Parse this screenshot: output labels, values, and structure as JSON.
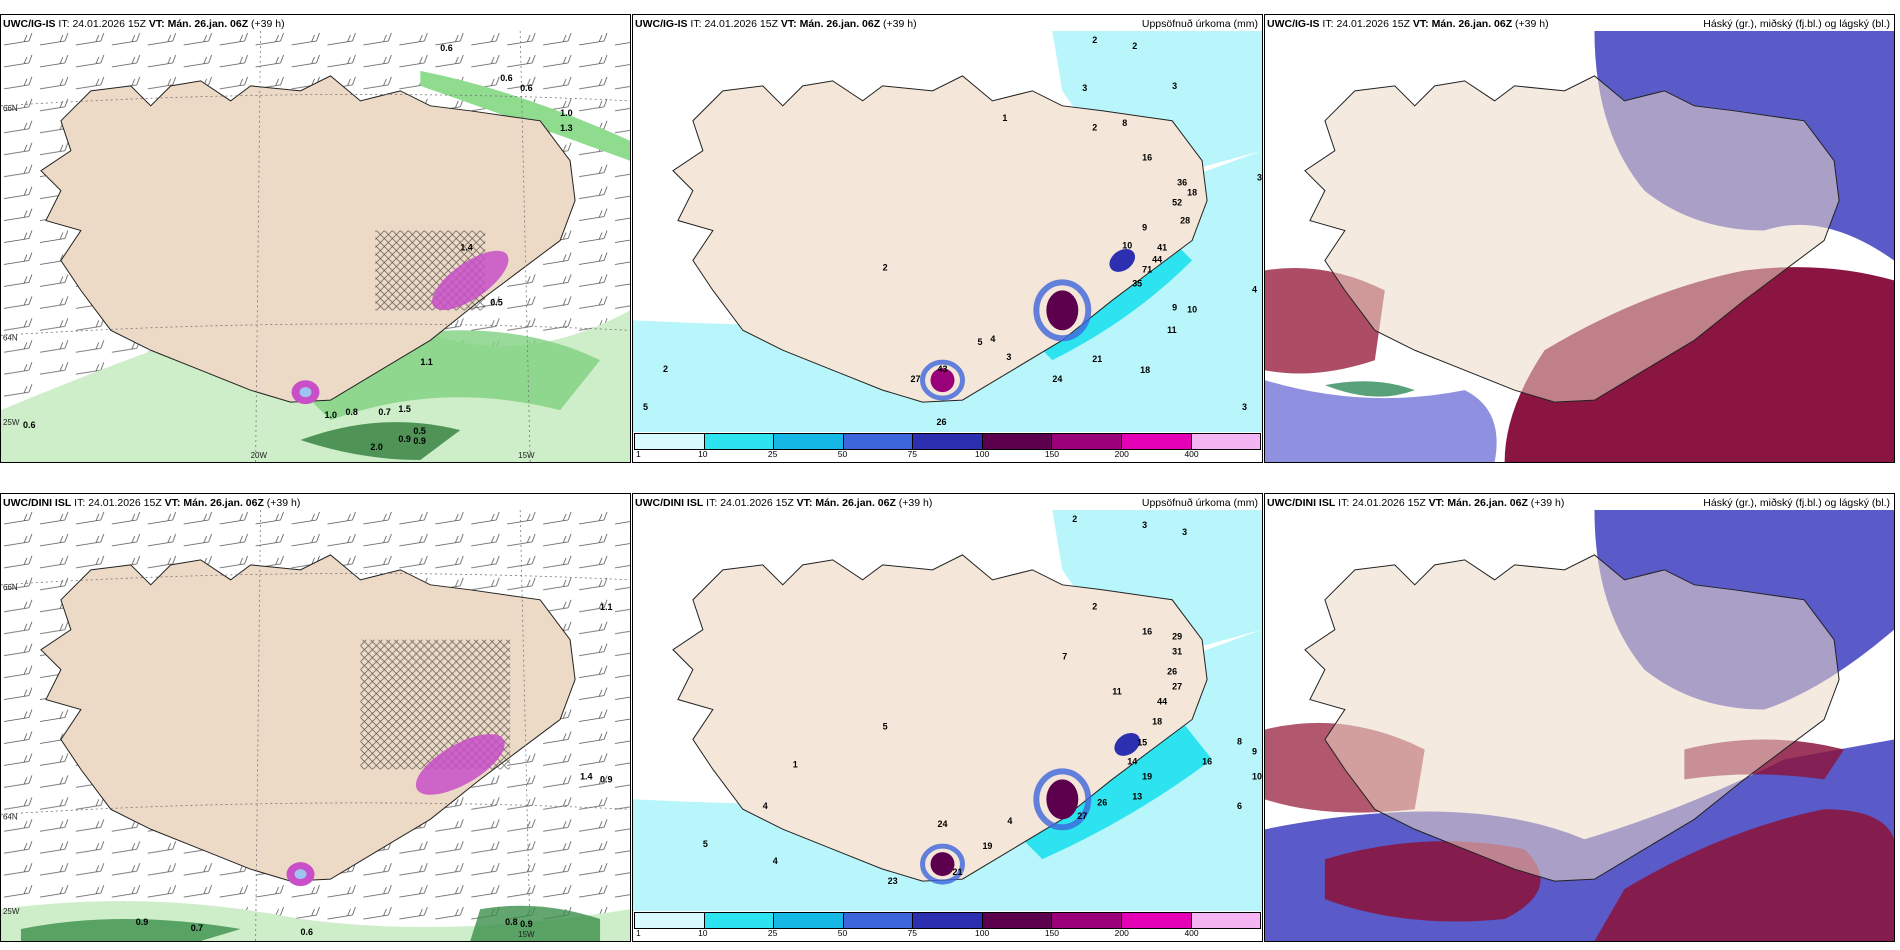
{
  "rows": [
    {
      "model": "UWC/IG-IS",
      "it_label": "IT:",
      "it_value": "24.01.2026 15Z",
      "vt_label": "VT:",
      "vt_value": "Mán. 26.jan. 06Z",
      "lead": "(+39 h)"
    },
    {
      "model": "UWC/DINI ISL",
      "it_label": "IT:",
      "it_value": "24.01.2026 15Z",
      "vt_label": "VT:",
      "vt_value": "Mán. 26.jan. 06Z",
      "lead": "(+39 h)"
    }
  ],
  "titles": {
    "precip": "Uppsöfnuð úrkoma (mm)",
    "clouds": "Háský (gr.), miðský (fj.bl.) og lágský (bl.)"
  },
  "axes": {
    "lat_66": "66N",
    "lat_64": "64N",
    "lon_25": "25W",
    "lon_20": "20W",
    "lon_15": "15W"
  },
  "colorbar": {
    "labels": [
      "1",
      "10",
      "25",
      "50",
      "75",
      "100",
      "150",
      "200",
      "400"
    ],
    "colors": [
      "#d8fafe",
      "#2de3ef",
      "#16b8e6",
      "#3d66dc",
      "#2c2fb0",
      "#5c004e",
      "#9a0079",
      "#e400b4",
      "#f5b4f2"
    ]
  },
  "wind_labels_top": [
    "0.6",
    "0.6",
    "1.0",
    "0.5",
    "0.6",
    "0.8",
    "0.7",
    "1.0",
    "1.5",
    "0.9",
    "0.5",
    "0.9",
    "2.0",
    "0.6",
    "1.3",
    "1.4",
    "1.1"
  ],
  "wind_labels_bottom": [
    "0.9",
    "0.7",
    "0.6",
    "0.8",
    "0.9",
    "1.4",
    "0.9",
    "1.1"
  ],
  "precip_numbers_top": [
    "2",
    "2",
    "3",
    "1",
    "2",
    "3",
    "8",
    "16",
    "36",
    "18",
    "52",
    "28",
    "9",
    "10",
    "41",
    "44",
    "71",
    "35",
    "9",
    "10",
    "11",
    "4",
    "21",
    "18",
    "27",
    "43",
    "24",
    "26",
    "5",
    "4",
    "3",
    "5",
    "2",
    "2",
    "3",
    "3"
  ],
  "precip_numbers_bottom": [
    "2",
    "3",
    "3",
    "2",
    "7",
    "16",
    "11",
    "29",
    "31",
    "26",
    "27",
    "44",
    "18",
    "15",
    "16",
    "14",
    "19",
    "13",
    "6",
    "8",
    "9",
    "10",
    "26",
    "27",
    "24",
    "19",
    "23",
    "21",
    "5",
    "4",
    "4",
    "1",
    "5",
    "4"
  ]
}
